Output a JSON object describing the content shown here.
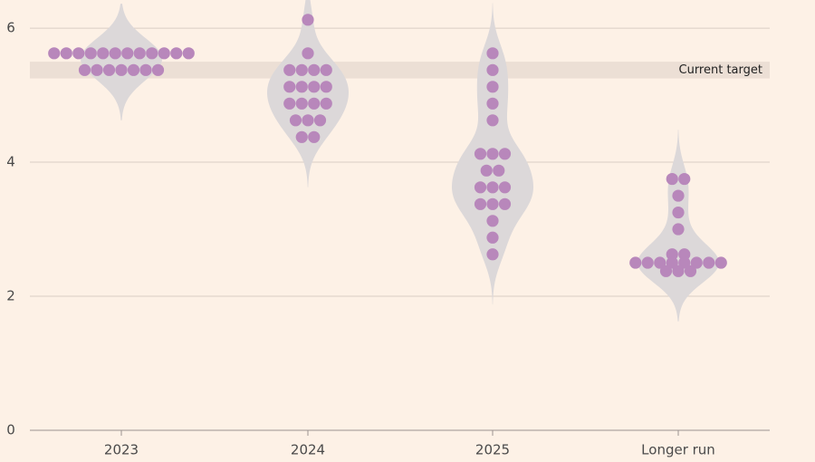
{
  "chart_data": {
    "type": "dot",
    "categories": [
      "2023",
      "2024",
      "2025",
      "Longer run"
    ],
    "dots": [
      [
        5.625,
        5.625,
        5.625,
        5.625,
        5.625,
        5.625,
        5.625,
        5.625,
        5.625,
        5.625,
        5.625,
        5.625,
        5.375,
        5.375,
        5.375,
        5.375,
        5.375,
        5.375,
        5.375
      ],
      [
        6.125,
        5.625,
        5.375,
        5.375,
        5.375,
        5.375,
        5.125,
        5.125,
        5.125,
        5.125,
        4.875,
        4.875,
        4.875,
        4.875,
        4.625,
        4.625,
        4.625,
        4.375,
        4.375
      ],
      [
        5.625,
        5.375,
        5.125,
        4.875,
        4.625,
        4.125,
        4.125,
        4.125,
        3.875,
        3.875,
        3.625,
        3.625,
        3.625,
        3.375,
        3.375,
        3.375,
        3.125,
        2.875,
        2.625
      ],
      [
        3.75,
        3.75,
        3.5,
        3.25,
        3.0,
        2.625,
        2.625,
        2.5,
        2.5,
        2.5,
        2.5,
        2.5,
        2.5,
        2.5,
        2.5,
        2.375,
        2.375,
        2.375
      ]
    ],
    "color": "#b887bb",
    "target_band": [
      5.25,
      5.5
    ],
    "target_label": "Current target",
    "ylim": [
      0,
      6.42
    ],
    "yticks": [
      0,
      2,
      4,
      6
    ],
    "grid": true
  }
}
